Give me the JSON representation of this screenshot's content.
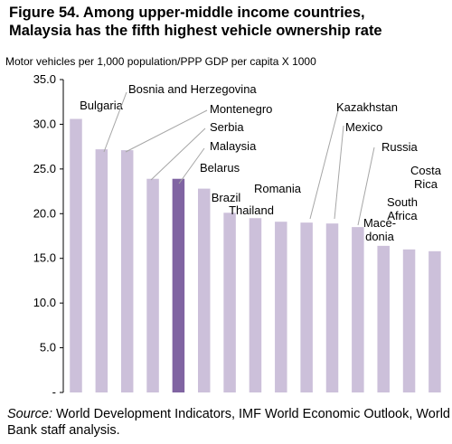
{
  "title_line1": "Figure 54. Among upper-middle income countries,",
  "title_line2": "Malaysia has the fifth highest vehicle ownership rate",
  "source_label": "Source:",
  "source_text": " World Development Indicators, IMF World Economic Outlook, World Bank staff analysis.",
  "colors": {
    "bar": "#CCC0DA",
    "highlight": "#8064A2",
    "leader": "#A6A6A6"
  },
  "chart_data": {
    "type": "bar",
    "ylabel": "Motor vehicles per 1,000 population/PPP GDP per capita X 1000",
    "ylim": [
      0,
      35
    ],
    "yticks": [
      "-",
      "5.0",
      "10.0",
      "15.0",
      "20.0",
      "25.0",
      "30.0",
      "35.0"
    ],
    "grid": false,
    "highlight": "Malaysia",
    "categories": [
      "Bulgaria",
      "Bosnia and Herzegovina",
      "Montenegro",
      "Serbia",
      "Malaysia",
      "Belarus",
      "Brazil",
      "Thailand",
      "Romania",
      "Kazakhstan",
      "Mexico",
      "Russia",
      "Macedonia",
      "South Africa",
      "Costa Rica"
    ],
    "values": [
      30.6,
      27.2,
      27.1,
      23.9,
      23.9,
      22.8,
      20.1,
      19.5,
      19.1,
      19.0,
      18.9,
      18.5,
      16.4,
      16.0,
      15.8
    ],
    "bar_labels": [
      [
        "Bulgaria"
      ],
      [
        "Bosnia and Herzegovina"
      ],
      [
        "Montenegro"
      ],
      [
        "Serbia"
      ],
      [
        "Malaysia"
      ],
      [
        "Belarus"
      ],
      [
        "Brazil"
      ],
      [
        "Thailand"
      ],
      [
        "Romania"
      ],
      [
        "Kazakhstan"
      ],
      [
        "Mexico"
      ],
      [
        "Russia"
      ],
      [
        "Mace-",
        "donia"
      ],
      [
        "South",
        "Africa"
      ],
      [
        "Costa",
        "Rica"
      ]
    ]
  }
}
